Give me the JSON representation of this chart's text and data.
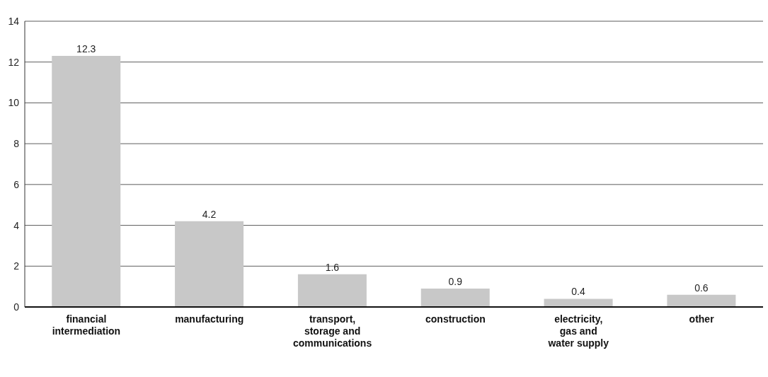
{
  "chart_data": {
    "type": "bar",
    "categories": [
      "financial intermediation",
      "manufacturing",
      "transport, storage and communications",
      "construction",
      "electricity, gas and water supply",
      "other"
    ],
    "values": [
      12.3,
      4.2,
      1.6,
      0.9,
      0.4,
      0.6
    ],
    "color": "#c8c8c8",
    "ylim": [
      0,
      14
    ],
    "yticks": [
      0,
      2,
      4,
      6,
      8,
      10,
      12,
      14
    ],
    "grid": "y",
    "data_labels": true
  }
}
